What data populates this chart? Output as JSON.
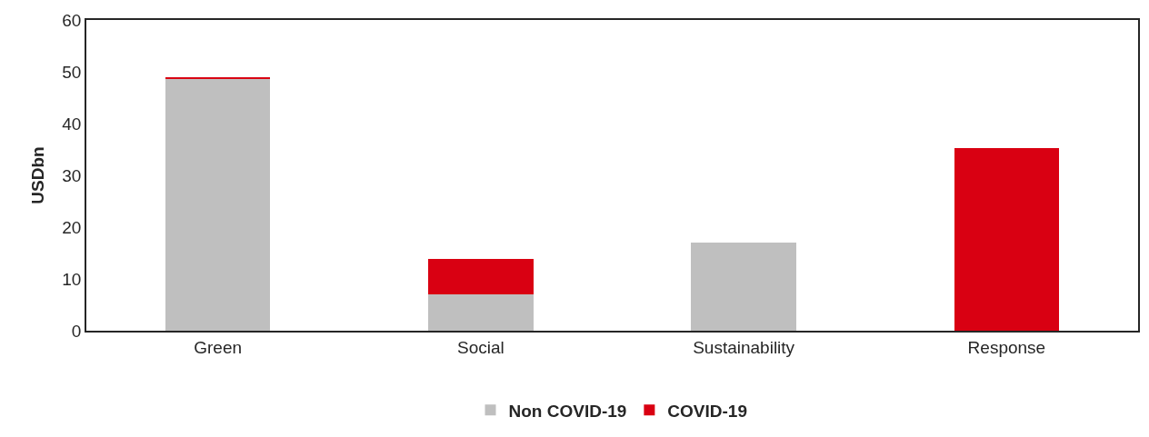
{
  "chart_data": {
    "type": "bar",
    "stacked": true,
    "ylabel": "USDbn",
    "categories": [
      "Green",
      "Social",
      "Sustainability",
      "Response"
    ],
    "series": [
      {
        "name": "Non COVID-19",
        "color": "#bfbfbf",
        "values": [
          48.6,
          7.0,
          17.1,
          0
        ]
      },
      {
        "name": "COVID-19",
        "color": "#d90012",
        "values": [
          0.3,
          6.9,
          0,
          35.2
        ]
      }
    ],
    "ylim": [
      0,
      60
    ],
    "yticks": [
      0,
      10,
      20,
      30,
      40,
      50,
      60
    ],
    "legend": "bottom"
  }
}
